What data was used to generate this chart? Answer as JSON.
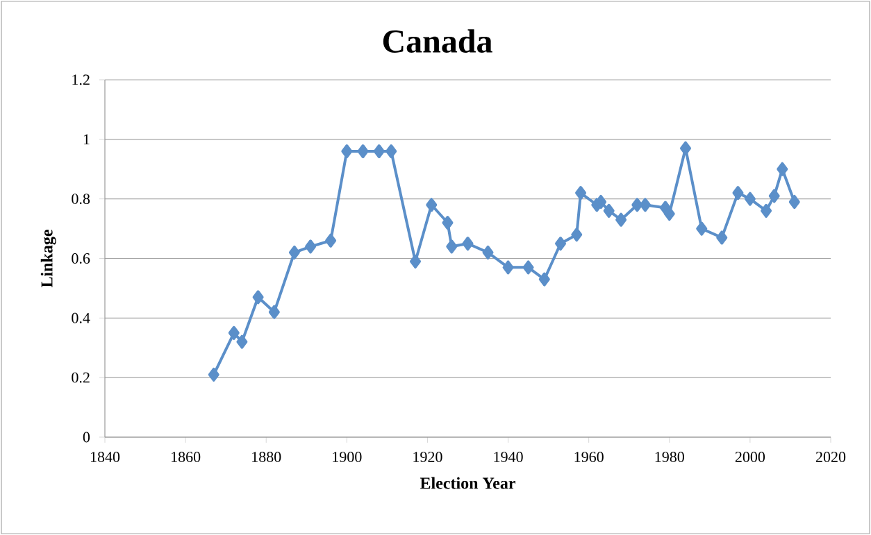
{
  "chart_data": {
    "type": "line",
    "title": "Canada",
    "xlabel": "Election Year",
    "ylabel": "Linkage",
    "x": [
      1867,
      1872,
      1874,
      1878,
      1882,
      1887,
      1891,
      1896,
      1900,
      1904,
      1908,
      1911,
      1917,
      1921,
      1925,
      1926,
      1930,
      1935,
      1940,
      1945,
      1949,
      1953,
      1957,
      1958,
      1962,
      1963,
      1965,
      1968,
      1972,
      1974,
      1979,
      1980,
      1984,
      1988,
      1993,
      1997,
      2000,
      2004,
      2006,
      2008,
      2011
    ],
    "series": [
      {
        "color": "#5b8fc9",
        "values": [
          0.21,
          0.35,
          0.32,
          0.47,
          0.42,
          0.62,
          0.64,
          0.66,
          0.96,
          0.96,
          0.96,
          0.96,
          0.59,
          0.78,
          0.72,
          0.64,
          0.65,
          0.62,
          0.57,
          0.57,
          0.53,
          0.65,
          0.68,
          0.82,
          0.78,
          0.79,
          0.76,
          0.73,
          0.78,
          0.78,
          0.77,
          0.75,
          0.97,
          0.7,
          0.67,
          0.82,
          0.8,
          0.76,
          0.81,
          0.9,
          0.79
        ]
      }
    ],
    "xlim": [
      1840,
      2020
    ],
    "xticks": [
      1840,
      1860,
      1880,
      1900,
      1920,
      1940,
      1960,
      1980,
      2000,
      2020
    ],
    "ylim": [
      0,
      1.2
    ],
    "yticks": [
      0,
      0.2,
      0.4,
      0.6,
      0.8,
      1,
      1.2
    ],
    "grid": "y",
    "marker": "diamond",
    "line_style": "solid"
  }
}
